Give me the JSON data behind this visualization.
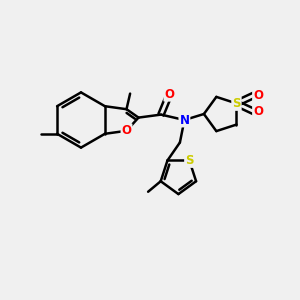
{
  "background_color": "#f0f0f0",
  "bond_color": "#000000",
  "atom_colors": {
    "O": "#ff0000",
    "N": "#0000ff",
    "S_thio": "#cccc00",
    "S_sulfone": "#cccc00"
  },
  "line_width": 1.8,
  "font_size_atom": 8.5
}
